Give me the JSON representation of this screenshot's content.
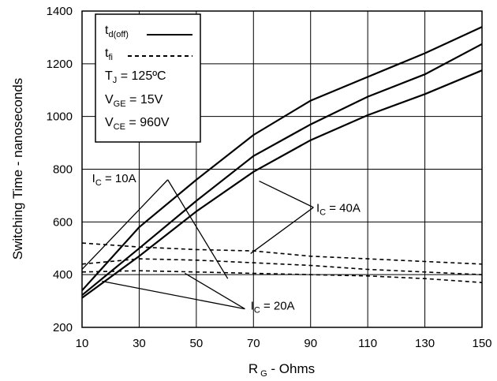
{
  "chart_data": {
    "type": "line",
    "xlabel": {
      "main": "R",
      "sub": "G",
      "rest": " - Ohms"
    },
    "ylabel": "Switching Time - nanoseconds",
    "xlim": [
      10,
      150
    ],
    "ylim": [
      200,
      1400
    ],
    "xticks": [
      10,
      30,
      50,
      70,
      90,
      110,
      130,
      150
    ],
    "yticks": [
      200,
      400,
      600,
      800,
      1000,
      1200,
      1400
    ],
    "grid": true,
    "legend": {
      "placement": "top-left",
      "entries": [
        {
          "main": "t",
          "sub": "d(off)",
          "style": "solid"
        },
        {
          "main": "t",
          "sub": "fi",
          "style": "dashed"
        }
      ],
      "conditions": [
        {
          "main": "T",
          "sub": "J",
          "rest": " = 125ºC"
        },
        {
          "main": "V",
          "sub": "GE",
          "rest": " = 15V"
        },
        {
          "main": "V",
          "sub": "CE",
          "rest": " = 960V"
        }
      ]
    },
    "series": [
      {
        "style": "solid",
        "x": [
          10,
          30,
          50,
          70,
          90,
          110,
          130,
          150
        ],
        "y": [
          340,
          580,
          760,
          930,
          1060,
          1150,
          1240,
          1340
        ]
      },
      {
        "style": "solid",
        "x": [
          10,
          30,
          50,
          70,
          90,
          110,
          130,
          150
        ],
        "y": [
          322,
          500,
          680,
          850,
          970,
          1075,
          1160,
          1275
        ]
      },
      {
        "style": "solid",
        "x": [
          10,
          30,
          50,
          70,
          90,
          110,
          130,
          150
        ],
        "y": [
          312,
          470,
          640,
          790,
          910,
          1005,
          1085,
          1175
        ]
      },
      {
        "style": "dashed",
        "x": [
          10,
          30,
          50,
          70,
          90,
          110,
          130,
          150
        ],
        "y": [
          520,
          505,
          495,
          490,
          470,
          460,
          450,
          440
        ]
      },
      {
        "style": "dashed",
        "x": [
          10,
          30,
          50,
          70,
          90,
          110,
          130,
          150
        ],
        "y": [
          440,
          460,
          455,
          445,
          435,
          420,
          410,
          400
        ]
      },
      {
        "style": "dashed",
        "x": [
          10,
          30,
          50,
          70,
          90,
          110,
          130,
          150
        ],
        "y": [
          410,
          415,
          410,
          405,
          400,
          395,
          385,
          370
        ]
      }
    ],
    "annotations": [
      {
        "main": "I",
        "sub": "C",
        "rest": " = 10A",
        "label_at": [
          13.5,
          750
        ],
        "leader_from": [
          40,
          760
        ],
        "leader_to": [
          [
            10,
            420
          ],
          [
            61,
            385
          ]
        ]
      },
      {
        "main": "I",
        "sub": "C",
        "rest": " = 40A",
        "label_at": [
          92,
          638
        ],
        "leader_from": [
          91,
          655
        ],
        "leader_to": [
          [
            72,
            755
          ],
          [
            69,
            480
          ]
        ]
      },
      {
        "main": "I",
        "sub": "C",
        "rest": " = 20A",
        "label_at": [
          69,
          268
        ],
        "leader_from": [
          67,
          270
        ],
        "leader_to": [
          [
            17,
            375
          ],
          [
            46,
            405
          ]
        ]
      }
    ]
  }
}
